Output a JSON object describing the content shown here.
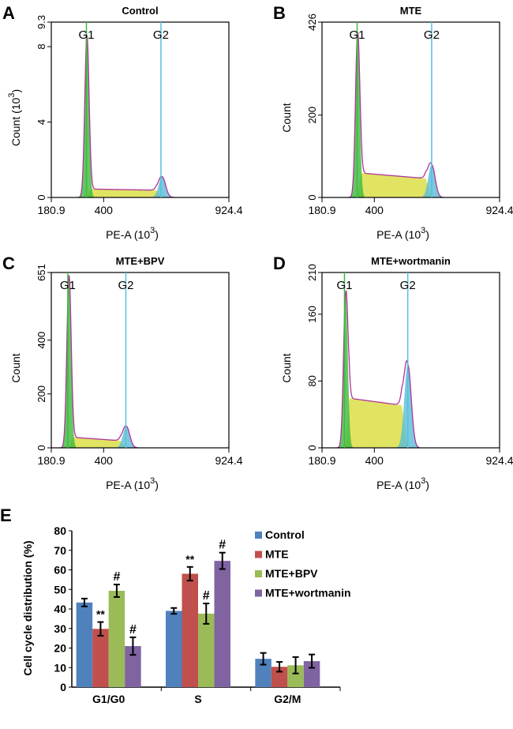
{
  "chart_data": [
    {
      "type": "area",
      "panel_label": "A",
      "title": "Control",
      "xlabel": "PE-A  (10",
      "xlabel_exp": "3",
      "xlabel_close": ")",
      "ylabel": "Count  (10",
      "ylabel_exp": "3",
      "ylabel_close": ")",
      "xlim": [
        180.9,
        924.4
      ],
      "xticks": [
        "180.9",
        "400",
        "924.4"
      ],
      "ylim": [
        0,
        9.3
      ],
      "yticks": [
        "0",
        "4",
        "8",
        "9.3"
      ],
      "gates": [
        {
          "label": "G1",
          "x": 328
        },
        {
          "label": "G2",
          "x": 640
        }
      ],
      "profile": {
        "g1_peak_x": 330,
        "g1_peak": 8.6,
        "s_start": 0.45,
        "s_end": 0.38,
        "g2_peak_x": 645,
        "g2_peak": 1.1
      }
    },
    {
      "type": "area",
      "panel_label": "B",
      "title": "MTE",
      "xlabel": "PE-A  (10",
      "xlabel_exp": "3",
      "xlabel_close": ")",
      "ylabel": "Count",
      "ylabel_exp": "",
      "ylabel_close": "",
      "xlim": [
        180.9,
        924.4
      ],
      "xticks": [
        "180.9",
        "400",
        "924.4"
      ],
      "ylim": [
        0,
        426
      ],
      "yticks": [
        "0",
        "200",
        "426"
      ],
      "gates": [
        {
          "label": "G1",
          "x": 328
        },
        {
          "label": "G2",
          "x": 640
        }
      ],
      "profile": {
        "g1_peak_x": 330,
        "g1_peak": 400,
        "s_start": 60,
        "s_end": 45,
        "g2_peak_x": 640,
        "g2_peak": 80
      }
    },
    {
      "type": "area",
      "panel_label": "C",
      "title": "MTE+BPV",
      "xlabel": "PE-A  (10",
      "xlabel_exp": "3",
      "xlabel_close": ")",
      "ylabel": "Count",
      "ylabel_exp": "",
      "ylabel_close": "",
      "xlim": [
        180.9,
        924.4
      ],
      "xticks": [
        "180.9",
        "400",
        "924.4"
      ],
      "ylim": [
        0,
        651
      ],
      "yticks": [
        "0",
        "200",
        "400",
        "651"
      ],
      "gates": [
        {
          "label": "G1",
          "x": 250
        },
        {
          "label": "G2",
          "x": 493
        }
      ],
      "profile": {
        "g1_peak_x": 255,
        "g1_peak": 640,
        "s_start": 40,
        "s_end": 25,
        "g2_peak_x": 495,
        "g2_peak": 80
      }
    },
    {
      "type": "area",
      "panel_label": "D",
      "title": "MTE+wortmanin",
      "xlabel": "PE-A  (10",
      "xlabel_exp": "3",
      "xlabel_close": ")",
      "ylabel": "Count",
      "ylabel_exp": "",
      "ylabel_close": "",
      "xlim": [
        180.9,
        924.4
      ],
      "xticks": [
        "180.9",
        "400",
        "924.4"
      ],
      "ylim": [
        0,
        210
      ],
      "yticks": [
        "0",
        "80",
        "160",
        "210"
      ],
      "gates": [
        {
          "label": "G1",
          "x": 275
        },
        {
          "label": "G2",
          "x": 540
        }
      ],
      "profile": {
        "g1_peak_x": 280,
        "g1_peak": 185,
        "s_start": 60,
        "s_end": 50,
        "g2_peak_x": 540,
        "g2_peak": 100
      }
    },
    {
      "type": "bar",
      "panel_label": "E",
      "ylabel": "Cell cycle distribution (%)",
      "ylim": [
        0,
        80
      ],
      "yticks": [
        "0",
        "10",
        "20",
        "30",
        "40",
        "50",
        "60",
        "70",
        "80"
      ],
      "categories": [
        "G1/G0",
        "S",
        "G2/M"
      ],
      "legend_position": "top-right",
      "series": [
        {
          "name": "Control",
          "color": "#4f81bd",
          "values": [
            43.3,
            39.0,
            14.5
          ],
          "errors": [
            2.0,
            1.5,
            3.0
          ],
          "annotations": [
            "",
            "",
            ""
          ]
        },
        {
          "name": "MTE",
          "color": "#c0504d",
          "values": [
            29.8,
            58.0,
            10.4
          ],
          "errors": [
            3.5,
            3.5,
            2.5
          ],
          "annotations": [
            "**",
            "**",
            ""
          ]
        },
        {
          "name": "MTE+BPV",
          "color": "#9bbb59",
          "values": [
            49.3,
            37.6,
            11.2
          ],
          "errors": [
            3.2,
            5.2,
            4.2
          ],
          "annotations": [
            "#",
            "#",
            ""
          ]
        },
        {
          "name": "MTE+wortmanin",
          "color": "#8064a2",
          "values": [
            21.0,
            64.6,
            13.3
          ],
          "errors": [
            4.5,
            4.2,
            3.4
          ],
          "annotations": [
            "#",
            "#",
            ""
          ]
        }
      ]
    }
  ]
}
